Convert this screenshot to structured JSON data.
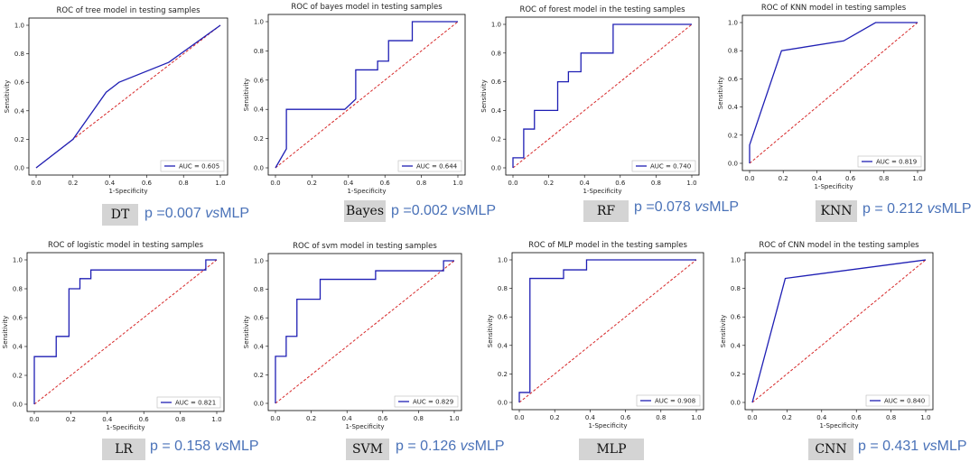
{
  "figure": {
    "panels": [
      {
        "id": "dt",
        "tag": "DT",
        "p_number": "p =0.007",
        "vs": "vs",
        "ref": "MLP"
      },
      {
        "id": "bayes",
        "tag": "Bayes",
        "p_number": "p =0.002",
        "vs": "vs",
        "ref": "MLP"
      },
      {
        "id": "rf",
        "tag": "RF",
        "p_number": "p =0.078",
        "vs": "vs",
        "ref": "MLP"
      },
      {
        "id": "knn",
        "tag": "KNN",
        "p_number": "p = 0.212",
        "vs": "vs",
        "ref": "MLP"
      },
      {
        "id": "lr",
        "tag": "LR",
        "p_number": "p = 0.158",
        "vs": "vs",
        "ref": "MLP"
      },
      {
        "id": "svm",
        "tag": "SVM",
        "p_number": "p = 0.126",
        "vs": "vs",
        "ref": "MLP"
      },
      {
        "id": "mlp",
        "tag": "MLP",
        "p_number": "",
        "vs": "",
        "ref": ""
      },
      {
        "id": "cnn",
        "tag": "CNN",
        "p_number": "p = 0.431",
        "vs": "vs",
        "ref": "MLP"
      }
    ]
  },
  "colors": {
    "roc": "#1f1fb4",
    "diagonal": "#d62728",
    "tag_bg": "#d4d4d4",
    "pvalue": "#4a72b8"
  },
  "chart_data": [
    {
      "type": "line",
      "title": "ROC of tree model in testing samples",
      "xlabel": "1-Specificity",
      "ylabel": "Sensitivity",
      "xlim": [
        0,
        1
      ],
      "ylim": [
        0,
        1
      ],
      "xticks": [
        "0.0",
        "0.2",
        "0.4",
        "0.6",
        "0.8",
        "1.0"
      ],
      "yticks": [
        "0.0",
        "0.2",
        "0.4",
        "0.6",
        "0.8",
        "1.0"
      ],
      "series": [
        {
          "name": "ROC",
          "x": [
            0,
            0.2,
            0.38,
            0.45,
            0.72,
            1.0
          ],
          "y": [
            0,
            0.2,
            0.53,
            0.6,
            0.74,
            1.0
          ]
        },
        {
          "name": "chance",
          "x": [
            0,
            1
          ],
          "y": [
            0,
            1
          ]
        }
      ],
      "legend": "AUC = 0.605",
      "legend_position": "lower-right"
    },
    {
      "type": "line",
      "title": "ROC of bayes model in testing samples",
      "xlabel": "1-Specificity",
      "ylabel": "Sensitivity",
      "xlim": [
        0,
        1
      ],
      "ylim": [
        0,
        1
      ],
      "xticks": [
        "0.0",
        "0.2",
        "0.4",
        "0.6",
        "0.8",
        "1.0"
      ],
      "yticks": [
        "0.0",
        "0.2",
        "0.4",
        "0.6",
        "0.8",
        "1.0"
      ],
      "series": [
        {
          "name": "ROC",
          "x": [
            0,
            0.06,
            0.06,
            0.06,
            0.38,
            0.44,
            0.44,
            0.56,
            0.56,
            0.62,
            0.62,
            0.75,
            0.75,
            1.0
          ],
          "y": [
            0,
            0.13,
            0.13,
            0.4,
            0.4,
            0.47,
            0.67,
            0.67,
            0.73,
            0.73,
            0.87,
            0.87,
            1.0,
            1.0
          ]
        },
        {
          "name": "chance",
          "x": [
            0,
            1
          ],
          "y": [
            0,
            1
          ]
        }
      ],
      "legend": "AUC = 0.644",
      "legend_position": "lower-right"
    },
    {
      "type": "line",
      "title": "ROC of forest model in the testing samples",
      "xlabel": "1-Specificity",
      "ylabel": "Sensitivity",
      "xlim": [
        0,
        1
      ],
      "ylim": [
        0,
        1
      ],
      "xticks": [
        "0.0",
        "0.2",
        "0.4",
        "0.6",
        "0.8",
        "1.0"
      ],
      "yticks": [
        "0.0",
        "0.2",
        "0.4",
        "0.6",
        "0.8",
        "1.0"
      ],
      "series": [
        {
          "name": "ROC",
          "x": [
            0,
            0,
            0.06,
            0.06,
            0.06,
            0.12,
            0.12,
            0.25,
            0.25,
            0.31,
            0.31,
            0.38,
            0.38,
            0.56,
            0.56,
            1.0
          ],
          "y": [
            0,
            0.07,
            0.07,
            0.13,
            0.27,
            0.27,
            0.4,
            0.4,
            0.6,
            0.6,
            0.67,
            0.67,
            0.8,
            0.8,
            1.0,
            1.0
          ]
        },
        {
          "name": "chance",
          "x": [
            0,
            1
          ],
          "y": [
            0,
            1
          ]
        }
      ],
      "legend": "AUC = 0.740",
      "legend_position": "lower-right"
    },
    {
      "type": "line",
      "title": "ROC of KNN model in testing samples",
      "xlabel": "1-Specificity",
      "ylabel": "Sensitivity",
      "xlim": [
        0,
        1
      ],
      "ylim": [
        0,
        1
      ],
      "xticks": [
        "0.0",
        "0.2",
        "0.4",
        "0.6",
        "0.8",
        "1.0"
      ],
      "yticks": [
        "0.0",
        "0.2",
        "0.4",
        "0.6",
        "0.8",
        "1.0"
      ],
      "series": [
        {
          "name": "ROC",
          "x": [
            0,
            0,
            0.19,
            0.56,
            0.75,
            1.0
          ],
          "y": [
            0,
            0.13,
            0.8,
            0.87,
            1.0,
            1.0
          ]
        },
        {
          "name": "chance",
          "x": [
            0,
            1
          ],
          "y": [
            0,
            1
          ]
        }
      ],
      "legend": "AUC = 0.819",
      "legend_position": "lower-right"
    },
    {
      "type": "line",
      "title": "ROC of logistic model in testing samples",
      "xlabel": "1-Specificity",
      "ylabel": "Sensitivity",
      "xlim": [
        0,
        1
      ],
      "ylim": [
        0,
        1
      ],
      "xticks": [
        "0.0",
        "0.2",
        "0.4",
        "0.6",
        "0.8",
        "1.0"
      ],
      "yticks": [
        "0.0",
        "0.2",
        "0.4",
        "0.6",
        "0.8",
        "1.0"
      ],
      "series": [
        {
          "name": "ROC",
          "x": [
            0,
            0,
            0.12,
            0.12,
            0.19,
            0.19,
            0.25,
            0.25,
            0.31,
            0.31,
            0.94,
            0.94,
            1.0
          ],
          "y": [
            0,
            0.33,
            0.33,
            0.47,
            0.47,
            0.8,
            0.8,
            0.87,
            0.87,
            0.93,
            0.93,
            1.0,
            1.0
          ]
        },
        {
          "name": "chance",
          "x": [
            0,
            1
          ],
          "y": [
            0,
            1
          ]
        }
      ],
      "legend": "AUC = 0.821",
      "legend_position": "lower-right"
    },
    {
      "type": "line",
      "title": "ROC of svm model in testing samples",
      "xlabel": "1-Specificity",
      "ylabel": "Sensitivity",
      "xlim": [
        0,
        1
      ],
      "ylim": [
        0,
        1
      ],
      "xticks": [
        "0.0",
        "0.2",
        "0.4",
        "0.6",
        "0.8",
        "1.0"
      ],
      "yticks": [
        "0.0",
        "0.2",
        "0.4",
        "0.6",
        "0.8",
        "1.0"
      ],
      "series": [
        {
          "name": "ROC",
          "x": [
            0,
            0,
            0.06,
            0.06,
            0.12,
            0.12,
            0.25,
            0.25,
            0.56,
            0.56,
            0.94,
            0.94,
            1.0
          ],
          "y": [
            0,
            0.33,
            0.33,
            0.47,
            0.47,
            0.73,
            0.73,
            0.87,
            0.87,
            0.93,
            0.93,
            1.0,
            1.0
          ]
        },
        {
          "name": "chance",
          "x": [
            0,
            1
          ],
          "y": [
            0,
            1
          ]
        }
      ],
      "legend": "AUC = 0.829",
      "legend_position": "lower-right"
    },
    {
      "type": "line",
      "title": "ROC of MLP model in the testing samples",
      "xlabel": "1-Specificity",
      "ylabel": "Sensitivity",
      "xlim": [
        0,
        1
      ],
      "ylim": [
        0,
        1
      ],
      "xticks": [
        "0.0",
        "0.2",
        "0.4",
        "0.6",
        "0.8",
        "1.0"
      ],
      "yticks": [
        "0.0",
        "0.2",
        "0.4",
        "0.6",
        "0.8",
        "1.0"
      ],
      "series": [
        {
          "name": "ROC",
          "x": [
            0,
            0,
            0.06,
            0.06,
            0.25,
            0.25,
            0.38,
            0.38,
            1.0
          ],
          "y": [
            0,
            0.07,
            0.07,
            0.87,
            0.87,
            0.93,
            0.93,
            1.0,
            1.0
          ]
        },
        {
          "name": "chance",
          "x": [
            0,
            1
          ],
          "y": [
            0,
            1
          ]
        }
      ],
      "legend": "AUC = 0.908",
      "legend_position": "lower-right"
    },
    {
      "type": "line",
      "title": "ROC of CNN model in the testing samples",
      "xlabel": "1-Specificity",
      "ylabel": "Sensitivity",
      "xlim": [
        0,
        1
      ],
      "ylim": [
        0,
        1
      ],
      "xticks": [
        "0.0",
        "0.2",
        "0.4",
        "0.6",
        "0.8",
        "1.0"
      ],
      "yticks": [
        "0.0",
        "0.2",
        "0.4",
        "0.6",
        "0.8",
        "1.0"
      ],
      "series": [
        {
          "name": "ROC",
          "x": [
            0,
            0.19,
            1.0
          ],
          "y": [
            0,
            0.87,
            1.0
          ]
        },
        {
          "name": "chance",
          "x": [
            0,
            1
          ],
          "y": [
            0,
            1
          ]
        }
      ],
      "legend": "AUC = 0.840",
      "legend_position": "lower-right"
    }
  ]
}
